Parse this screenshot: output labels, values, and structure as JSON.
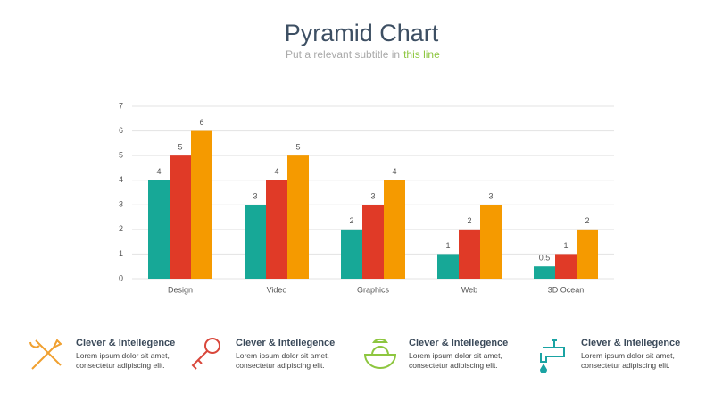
{
  "chart_data": {
    "type": "bar",
    "title": "Pyramid Chart",
    "subtitle": [
      "Put a relevant subtitle in",
      "this line"
    ],
    "categories": [
      "Design",
      "Video",
      "Graphics",
      "Web",
      "3D Ocean"
    ],
    "series": [
      {
        "color": "#17a897",
        "values": [
          4,
          3,
          2,
          1,
          0.5
        ]
      },
      {
        "color": "#e03a27",
        "values": [
          5,
          4,
          3,
          2,
          1
        ]
      },
      {
        "color": "#f59a00",
        "values": [
          6,
          5,
          4,
          3,
          2
        ]
      }
    ],
    "ylim": [
      0,
      7
    ],
    "yticks": [
      0,
      1,
      2,
      3,
      4,
      5,
      6,
      7
    ],
    "grid": true
  },
  "features": [
    {
      "title": "Clever & Intellegence",
      "text": [
        "Lorem ipsum dolor sit amet,",
        "consectetur adipiscing elit."
      ]
    },
    {
      "title": "Clever & Intellegence",
      "text": [
        "Lorem ipsum dolor sit amet,",
        "consectetur adipiscing elit."
      ]
    },
    {
      "title": "Clever & Intellegence",
      "text": [
        "Lorem ipsum dolor sit amet,",
        "consectetur adipiscing elit."
      ]
    },
    {
      "title": "Clever & Intellegence",
      "text": [
        "Lorem ipsum dolor sit amet,",
        "consectetur adipiscing elit."
      ]
    }
  ]
}
